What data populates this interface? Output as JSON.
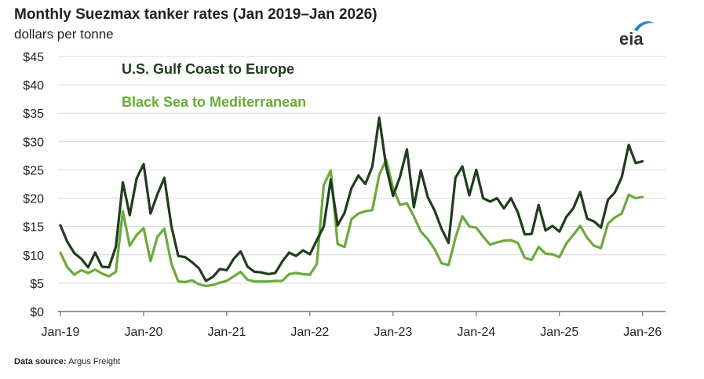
{
  "chart_data": {
    "type": "line",
    "title": "Monthly Suezmax tanker rates (Jan 2019–Jan 2026)",
    "ylabel": "dollars per tonne",
    "ylim": [
      0,
      45
    ],
    "yticks": [
      "$0",
      "$5",
      "$10",
      "$15",
      "$20",
      "$25",
      "$30",
      "$35",
      "$40",
      "$45"
    ],
    "ytick_values": [
      0,
      5,
      10,
      15,
      20,
      25,
      30,
      35,
      40,
      45
    ],
    "xticks": [
      "Jan-19",
      "Jan-20",
      "Jan-21",
      "Jan-22",
      "Jan-23",
      "Jan-24",
      "Jan-25",
      "Jan-26"
    ],
    "xtick_index": [
      0,
      12,
      24,
      36,
      48,
      60,
      72,
      84
    ],
    "grid": "horizontal",
    "series": [
      {
        "name": "U.S. Gulf Coast to Europe",
        "color": "#1e3d1c",
        "values": [
          15.2,
          12.3,
          10.3,
          9.3,
          7.8,
          10.4,
          7.9,
          7.8,
          11.4,
          22.8,
          17.0,
          23.5,
          26.0,
          17.3,
          20.7,
          23.6,
          15.1,
          9.8,
          9.6,
          8.7,
          7.6,
          5.4,
          6.1,
          7.5,
          7.3,
          9.3,
          10.6,
          7.9,
          7.0,
          6.9,
          6.6,
          6.8,
          8.8,
          10.4,
          9.8,
          10.8,
          10.1,
          12.6,
          15.0,
          23.3,
          15.2,
          17.4,
          21.8,
          24.0,
          22.5,
          25.6,
          34.2,
          25.6,
          20.4,
          23.8,
          28.6,
          18.4,
          24.9,
          20.2,
          17.8,
          14.6,
          12.1,
          23.6,
          25.6,
          20.5,
          25.0,
          20.0,
          19.4,
          20.0,
          18.2,
          20.0,
          17.5,
          13.6,
          13.7,
          18.8,
          14.3,
          15.1,
          14.1,
          16.7,
          18.2,
          21.1,
          16.4,
          15.9,
          14.8,
          19.7,
          21.0,
          23.7,
          29.4,
          26.2,
          26.5
        ],
        "label_color": "#1e3d1c"
      },
      {
        "name": "Black Sea to Mediterranean",
        "color": "#6aaa3a",
        "values": [
          10.4,
          7.8,
          6.5,
          7.3,
          6.8,
          7.4,
          6.7,
          6.2,
          7.0,
          17.7,
          11.6,
          13.5,
          14.7,
          8.9,
          13.2,
          14.6,
          8.5,
          5.3,
          5.2,
          5.5,
          4.8,
          4.5,
          4.7,
          5.1,
          5.4,
          6.2,
          7.0,
          5.6,
          5.3,
          5.3,
          5.3,
          5.4,
          5.4,
          6.6,
          6.8,
          6.6,
          6.5,
          8.4,
          22.3,
          24.9,
          11.9,
          11.4,
          16.3,
          17.3,
          17.7,
          17.9,
          24.1,
          26.8,
          21.8,
          18.8,
          19.1,
          16.8,
          14.1,
          12.8,
          11.0,
          8.5,
          8.2,
          13.0,
          16.8,
          15.0,
          14.8,
          13.2,
          11.8,
          12.2,
          12.5,
          12.6,
          12.1,
          9.5,
          9.1,
          11.4,
          10.2,
          10.1,
          9.6,
          12.0,
          13.5,
          15.1,
          13.0,
          11.6,
          11.2,
          15.5,
          16.6,
          17.3,
          20.6,
          20.0,
          20.2
        ],
        "label_color": "#6aaa3a"
      }
    ]
  },
  "source": {
    "label": "Data source:",
    "value": "Argus Freight"
  },
  "logo": {
    "text": "eia"
  }
}
